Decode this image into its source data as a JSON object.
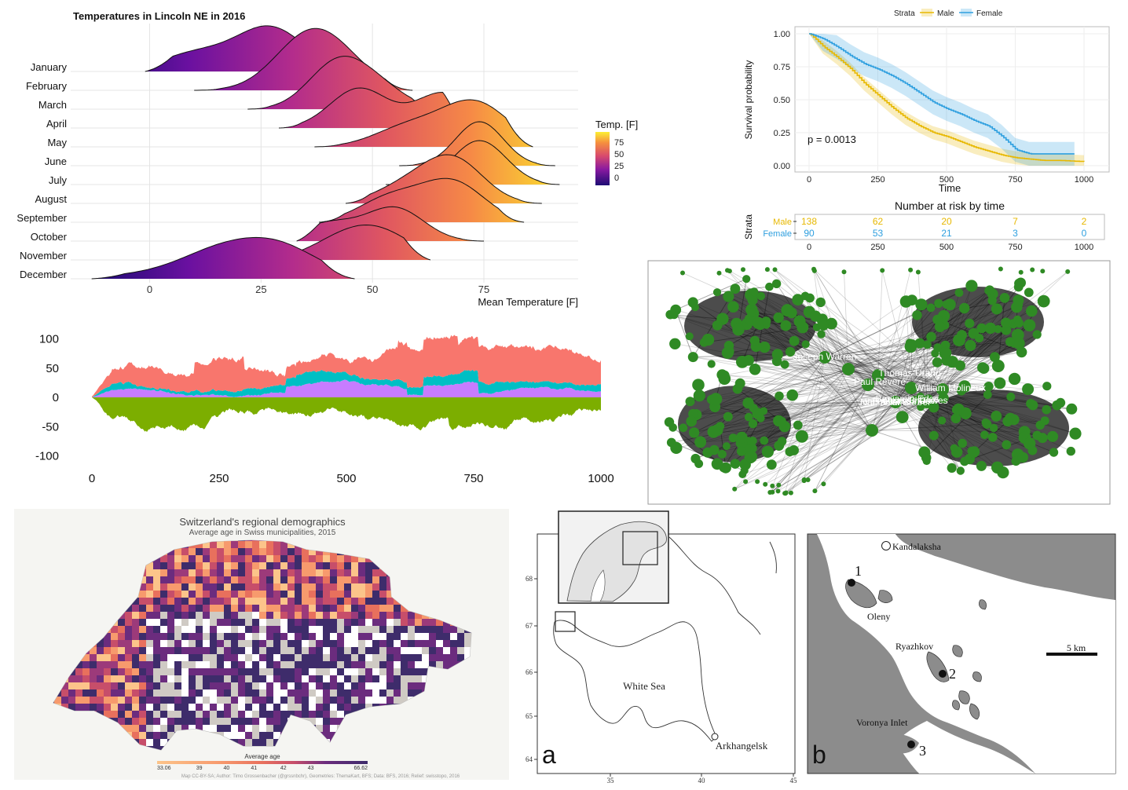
{
  "chart_data": [
    {
      "type": "ridgeline",
      "title": "Temperatures in Lincoln NE in 2016",
      "xlabel": "Mean Temperature [F]",
      "ylabel": "",
      "categories": [
        "January",
        "February",
        "March",
        "April",
        "May",
        "June",
        "July",
        "August",
        "September",
        "October",
        "November",
        "December"
      ],
      "x_ticks": [
        0,
        25,
        50,
        75
      ],
      "xlim": [
        -13,
        93
      ],
      "legend": {
        "title": "Temp. [F]",
        "labels": [
          "75",
          "50",
          "25",
          "0"
        ],
        "position": "right"
      },
      "series": [
        {
          "name": "January",
          "peaks": [
            [
              10,
              0.4
            ],
            [
              27,
              1.0
            ]
          ],
          "range": [
            -1,
            49
          ]
        },
        {
          "name": "February",
          "peaks": [
            [
              35,
              1.0
            ],
            [
              42,
              0.55
            ]
          ],
          "range": [
            10,
            59
          ]
        },
        {
          "name": "March",
          "peaks": [
            [
              42,
              1.0
            ],
            [
              51,
              0.45
            ]
          ],
          "range": [
            22,
            64
          ]
        },
        {
          "name": "April",
          "peaks": [
            [
              47,
              0.9
            ],
            [
              66,
              0.8
            ]
          ],
          "range": [
            29,
            71
          ]
        },
        {
          "name": "May",
          "peaks": [
            [
              58,
              0.45
            ],
            [
              73,
              1.0
            ]
          ],
          "range": [
            37,
            86
          ]
        },
        {
          "name": "June",
          "peaks": [
            [
              74,
              1.0
            ]
          ],
          "range": [
            56,
            91
          ]
        },
        {
          "name": "July",
          "peaks": [
            [
              74,
              1.0
            ]
          ],
          "range": [
            53,
            92
          ]
        },
        {
          "name": "August",
          "peaks": [
            [
              57,
              0.35
            ],
            [
              68,
              1.0
            ]
          ],
          "range": [
            44,
            88
          ]
        },
        {
          "name": "September",
          "peaks": [
            [
              54,
              0.55
            ],
            [
              68,
              0.9
            ]
          ],
          "range": [
            38,
            84
          ]
        },
        {
          "name": "October",
          "peaks": [
            [
              40,
              0.4
            ],
            [
              55,
              0.75
            ]
          ],
          "range": [
            33,
            75
          ]
        },
        {
          "name": "November",
          "peaks": [
            [
              43,
              0.4
            ],
            [
              52,
              0.55
            ]
          ],
          "range": [
            15,
            63
          ]
        },
        {
          "name": "December",
          "peaks": [
            [
              -2,
              0.08
            ],
            [
              15,
              0.55
            ],
            [
              29,
              0.7
            ]
          ],
          "range": [
            -13,
            46
          ]
        }
      ]
    },
    {
      "type": "line",
      "title": "",
      "legend": {
        "title": "Strata",
        "entries": [
          "Male",
          "Female"
        ],
        "position": "top"
      },
      "xlabel": "Time",
      "ylabel": "Survival probability",
      "x_ticks": [
        0,
        250,
        500,
        750,
        1000
      ],
      "y_ticks": [
        "0.00",
        "0.25",
        "0.50",
        "0.75",
        "1.00"
      ],
      "xlim": [
        -20,
        1030
      ],
      "ylim": [
        -0.03,
        1.05
      ],
      "annotation": "p = 0.0013",
      "series": [
        {
          "name": "Male",
          "color": "#E7B800",
          "points": [
            [
              0,
              1
            ],
            [
              50,
              0.9
            ],
            [
              100,
              0.82
            ],
            [
              150,
              0.73
            ],
            [
              200,
              0.62
            ],
            [
              250,
              0.53
            ],
            [
              300,
              0.44
            ],
            [
              350,
              0.36
            ],
            [
              400,
              0.3
            ],
            [
              450,
              0.25
            ],
            [
              500,
              0.22
            ],
            [
              550,
              0.18
            ],
            [
              600,
              0.14
            ],
            [
              650,
              0.11
            ],
            [
              700,
              0.08
            ],
            [
              750,
              0.06
            ],
            [
              800,
              0.05
            ],
            [
              850,
              0.04
            ],
            [
              900,
              0.04
            ],
            [
              1000,
              0.03
            ]
          ]
        },
        {
          "name": "Female",
          "color": "#2E9FDF",
          "points": [
            [
              0,
              1
            ],
            [
              50,
              0.96
            ],
            [
              100,
              0.9
            ],
            [
              150,
              0.83
            ],
            [
              200,
              0.77
            ],
            [
              250,
              0.73
            ],
            [
              300,
              0.68
            ],
            [
              350,
              0.62
            ],
            [
              400,
              0.55
            ],
            [
              450,
              0.48
            ],
            [
              500,
              0.43
            ],
            [
              550,
              0.39
            ],
            [
              600,
              0.34
            ],
            [
              650,
              0.3
            ],
            [
              700,
              0.22
            ],
            [
              750,
              0.12
            ],
            [
              800,
              0.09
            ],
            [
              850,
              0.09
            ],
            [
              900,
              0.09
            ],
            [
              965,
              0.09
            ]
          ]
        }
      ],
      "risk_table": {
        "title": "Number at risk by time",
        "ylabel": "Strata",
        "x_ticks": [
          "0",
          "250",
          "500",
          "750",
          "1000"
        ],
        "rows": [
          {
            "name": "Male",
            "values": [
              "138",
              "62",
              "20",
              "7",
              "2"
            ]
          },
          {
            "name": "Female",
            "values": [
              "90",
              "53",
              "21",
              "3",
              "0"
            ]
          }
        ]
      }
    },
    {
      "type": "area",
      "title": "",
      "xlabel": "",
      "ylabel": "",
      "x_ticks": [
        0,
        250,
        500,
        750,
        1000
      ],
      "y_ticks": [
        100,
        50,
        0,
        -50,
        -100
      ],
      "xlim": [
        0,
        1000
      ],
      "ylim": [
        -110,
        110
      ],
      "series_colors": [
        "#7CAE00",
        "#C77CFF",
        "#00BFC4",
        "#F8766D"
      ]
    },
    {
      "type": "network",
      "title": "",
      "node_labels": [
        "Joseph Warren",
        "Thomas Urann",
        "Paul Revere",
        "William Molineux",
        "Thomas Chase",
        "John Adams",
        "Benjamin Edes",
        "Nathaniel Barber",
        "Thomas Dawes"
      ]
    },
    {
      "type": "heatmap",
      "title": "Switzerland's regional demographics",
      "subtitle": "Average age in Swiss municipalities, 2015",
      "legend": {
        "title": "Average age",
        "labels": [
          "33.06",
          "39",
          "40",
          "41",
          "42",
          "43",
          "66.62"
        ],
        "colors": [
          "#FCC48A",
          "#F79A6D",
          "#E8705D",
          "#C74E6A",
          "#9C3A7A",
          "#6B2C7E",
          "#3E2C6B"
        ]
      },
      "caption": "Map CC-BY-SA; Author: Timo Grossenbacher (@grssnbchr), Geometries: ThemaKart, BFS; Data: BFS, 2016; Relief: swisstopo, 2016"
    },
    {
      "type": "map",
      "title": "",
      "panel": "a",
      "y_ticks": [
        "68",
        "67",
        "66",
        "65",
        "64"
      ],
      "x_ticks": [
        "35",
        "40",
        "45"
      ],
      "labels": [
        "White Sea",
        "Arkhangelsk"
      ]
    },
    {
      "type": "map",
      "title": "",
      "panel": "b",
      "labels": [
        "Kandalaksha",
        "Oleny",
        "Ryazhkov",
        "Voronya Inlet"
      ],
      "sites": [
        "1",
        "2",
        "3"
      ],
      "scale": "5 km"
    }
  ]
}
